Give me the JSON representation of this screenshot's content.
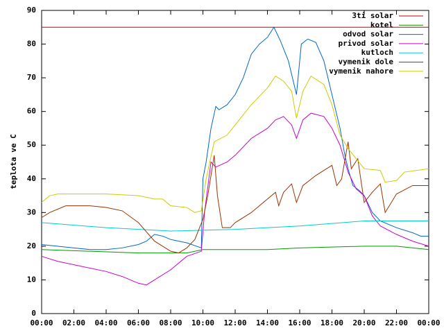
{
  "chart_data": {
    "type": "line",
    "ylabel": "teplota ve C",
    "xlim": [
      0,
      24
    ],
    "ylim": [
      0,
      90
    ],
    "xticks": [
      {
        "value": 0,
        "label": "00:00"
      },
      {
        "value": 2,
        "label": "02:00"
      },
      {
        "value": 4,
        "label": "04:00"
      },
      {
        "value": 6,
        "label": "06:00"
      },
      {
        "value": 8,
        "label": "08:00"
      },
      {
        "value": 10,
        "label": "10:00"
      },
      {
        "value": 12,
        "label": "12:00"
      },
      {
        "value": 14,
        "label": "14:00"
      },
      {
        "value": 16,
        "label": "16:00"
      },
      {
        "value": 18,
        "label": "18:00"
      },
      {
        "value": 20,
        "label": "20:00"
      },
      {
        "value": 22,
        "label": "22:00"
      },
      {
        "value": 24,
        "label": "00:00"
      }
    ],
    "yticks": [
      0,
      10,
      20,
      30,
      40,
      50,
      60,
      70,
      80,
      90
    ],
    "grid": false,
    "legend": "top-right",
    "series": [
      {
        "name": "3ti solar",
        "color": "#cc0000",
        "x": [
          0,
          24
        ],
        "values": [
          85,
          85
        ]
      },
      {
        "name": "kotel",
        "color": "#009900",
        "x": [
          0,
          3,
          6,
          9,
          10,
          14,
          16,
          20,
          22,
          24
        ],
        "values": [
          19,
          18.5,
          18,
          18,
          19,
          19,
          19.5,
          20,
          20,
          19
        ]
      },
      {
        "name": "odvod solar",
        "color": "#0066cc",
        "x": [
          0,
          2,
          3,
          4,
          5,
          6,
          6.5,
          7,
          7.5,
          8,
          9,
          9.9,
          10.0,
          10.2,
          10.5,
          10.8,
          11,
          11.5,
          12,
          12.5,
          13,
          13.5,
          14,
          14.4,
          14.8,
          15.3,
          15.8,
          16.1,
          16.5,
          17,
          17.5,
          18,
          18.5,
          18.8,
          19,
          19.3,
          19.7,
          20,
          20.5,
          21,
          22,
          23,
          23.5,
          24
        ],
        "values": [
          20.5,
          19.5,
          19,
          19,
          19.5,
          20.5,
          21.5,
          23.5,
          23,
          22,
          21,
          19.5,
          40,
          45,
          55,
          61.5,
          60.5,
          62,
          65,
          70,
          77,
          80,
          82,
          85,
          81,
          75,
          65,
          80,
          81.5,
          80.5,
          75,
          65,
          55,
          47,
          43,
          38,
          36.5,
          35,
          30,
          27.5,
          25.5,
          24,
          23,
          23
        ]
      },
      {
        "name": "privod solar",
        "color": "#cc00cc",
        "x": [
          0,
          1,
          2,
          3,
          4,
          5,
          6,
          6.5,
          7,
          8,
          9,
          9.9,
          10.1,
          10.5,
          10.8,
          11.5,
          12,
          13,
          14,
          14.5,
          15,
          15.5,
          15.8,
          16.2,
          16.7,
          17.5,
          18,
          18.5,
          19,
          19.5,
          20,
          20.5,
          21,
          22,
          23,
          24
        ],
        "values": [
          17,
          15.5,
          14.5,
          13.5,
          12.5,
          11,
          9,
          8.5,
          10,
          13,
          17,
          18.5,
          30,
          45,
          43.5,
          45,
          47,
          52,
          55,
          57.5,
          58.5,
          56,
          52,
          57.5,
          59.5,
          58.5,
          55,
          50,
          42,
          37,
          35,
          29,
          26,
          23.5,
          21.5,
          20
        ]
      },
      {
        "name": "kutloch",
        "color": "#00cccc",
        "x": [
          0,
          4,
          8,
          12,
          16,
          20,
          24
        ],
        "values": [
          27,
          25.5,
          24.5,
          25,
          26,
          27.5,
          27.5
        ]
      },
      {
        "name": "vymenik dole",
        "color": "#993300",
        "x": [
          0,
          0.5,
          1.5,
          3,
          4,
          5,
          6,
          7,
          8,
          8.5,
          9,
          9.5,
          10,
          10.3,
          10.7,
          10.9,
          11.2,
          11.7,
          12,
          13,
          14,
          14.5,
          14.7,
          15,
          15.5,
          15.8,
          16.2,
          17,
          18,
          18.3,
          18.6,
          19,
          19.2,
          19.6,
          20,
          20.5,
          21,
          21.3,
          22,
          23,
          24
        ],
        "values": [
          28.5,
          30,
          32,
          32,
          31.5,
          30.5,
          27,
          21.5,
          18.5,
          18,
          19.5,
          22,
          28,
          35,
          47,
          35,
          25.5,
          25.5,
          27,
          30,
          34,
          36,
          32,
          36,
          38.5,
          33,
          38,
          41,
          44,
          38,
          40,
          51,
          43,
          46,
          33,
          36,
          38.5,
          30,
          35.5,
          38,
          38
        ]
      },
      {
        "name": "vymenik nahore",
        "color": "#cccc00",
        "x": [
          0,
          0.5,
          1,
          4,
          6,
          7,
          7.5,
          8,
          9,
          9.5,
          9.9,
          10.2,
          10.7,
          11.5,
          12,
          13,
          14,
          14.5,
          15,
          15.5,
          15.8,
          16.2,
          16.7,
          17.5,
          18,
          18.5,
          19,
          19.5,
          20,
          21,
          21.3,
          22,
          22.5,
          24
        ],
        "values": [
          33,
          35,
          35.5,
          35.5,
          35,
          34,
          34,
          32,
          31.5,
          30,
          30.5,
          40,
          51,
          53,
          56,
          62,
          67,
          70.5,
          69,
          66,
          58,
          66,
          70.5,
          68,
          62,
          53,
          49,
          46,
          43,
          42.5,
          39,
          39.5,
          42,
          43
        ]
      }
    ]
  }
}
